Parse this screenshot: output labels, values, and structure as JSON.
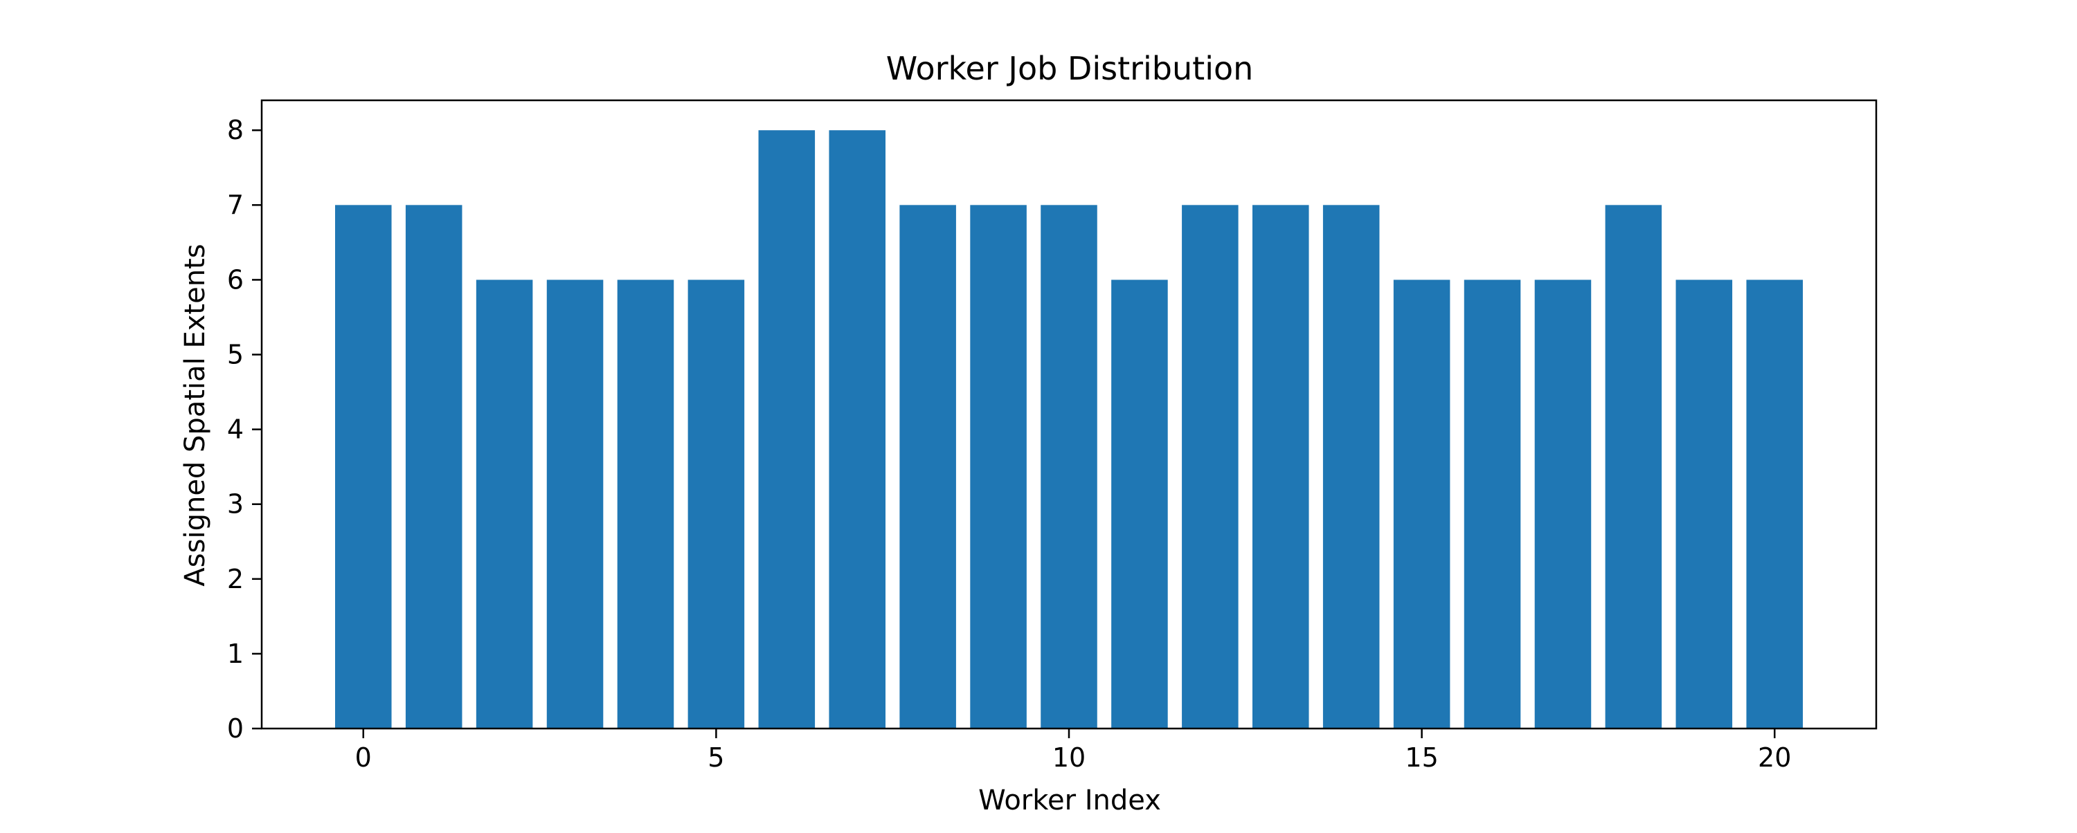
{
  "chart_data": {
    "type": "bar",
    "title": "Worker Job Distribution",
    "xlabel": "Worker Index",
    "ylabel": "Assigned Spatial Extents",
    "x": [
      0,
      1,
      2,
      3,
      4,
      5,
      6,
      7,
      8,
      9,
      10,
      11,
      12,
      13,
      14,
      15,
      16,
      17,
      18,
      19,
      20
    ],
    "values": [
      7,
      7,
      6,
      6,
      6,
      6,
      8,
      8,
      7,
      7,
      7,
      6,
      7,
      7,
      7,
      6,
      6,
      6,
      7,
      6,
      6
    ],
    "xlim": [
      -1.44,
      21.44
    ],
    "ylim": [
      0,
      8.4
    ],
    "xticks": [
      0,
      5,
      10,
      15,
      20
    ],
    "yticks": [
      0,
      1,
      2,
      3,
      4,
      5,
      6,
      7,
      8
    ],
    "grid": false,
    "bar_color": "#1f77b4"
  }
}
